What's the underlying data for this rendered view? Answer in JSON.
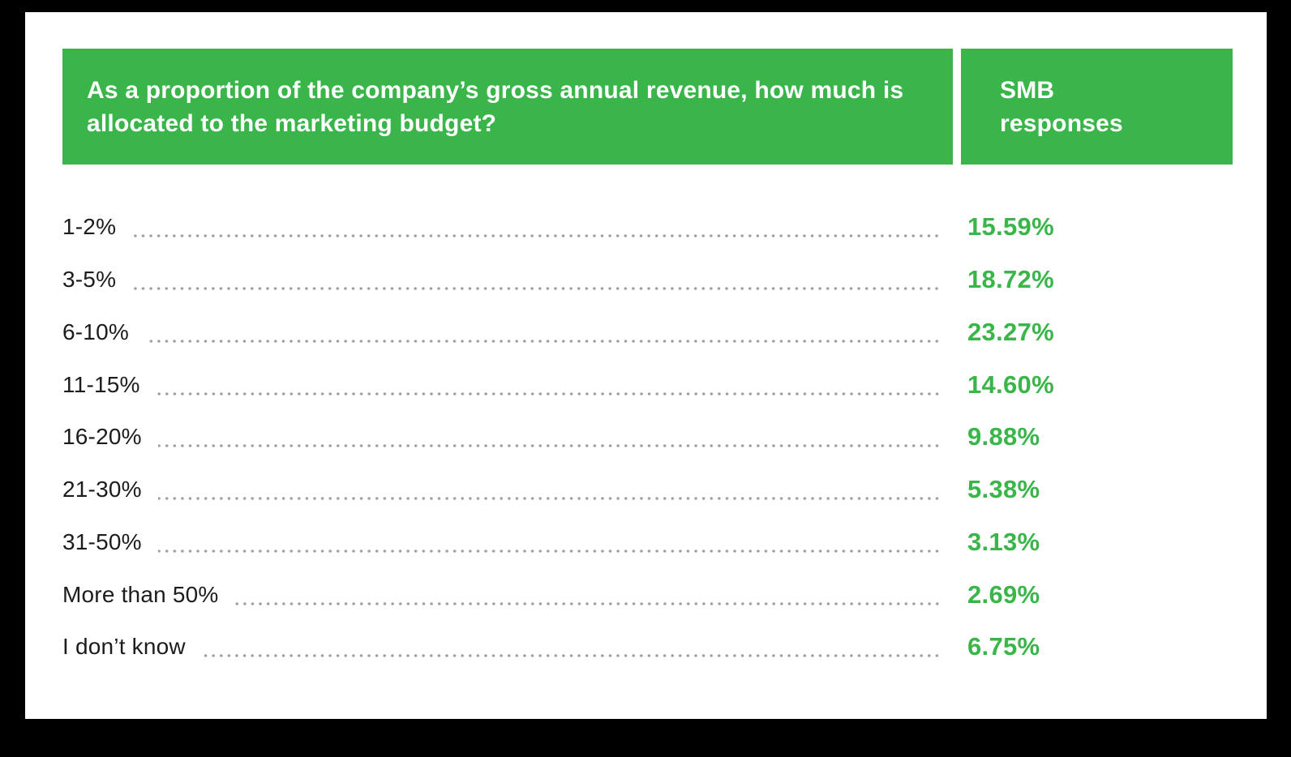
{
  "colors": {
    "frame_background": "#000000",
    "card_background": "#ffffff",
    "accent_green": "#3ab54a",
    "header_text": "#ffffff",
    "label_text": "#1c1c1c",
    "dot_leader": "#9d9d9d"
  },
  "header": {
    "question": "As a proportion of the company’s gross annual revenue, how much is allocated to the marketing budget?",
    "responses_label": "SMB responses"
  },
  "chart_data": {
    "type": "table",
    "title": "As a proportion of the company’s gross annual revenue, how much is allocated to the marketing budget?",
    "value_column": "SMB responses",
    "categories": [
      "1-2%",
      "3-5%",
      "6-10%",
      "11-15%",
      "16-20%",
      "21-30%",
      "31-50%",
      "More than 50%",
      "I don’t know"
    ],
    "values": [
      15.59,
      18.72,
      23.27,
      14.6,
      9.88,
      5.38,
      3.13,
      2.69,
      6.75
    ],
    "value_labels": [
      "15.59%",
      "18.72%",
      "23.27%",
      "14.60%",
      "9.88%",
      "5.38%",
      "3.13%",
      "2.69%",
      "6.75%"
    ],
    "legend_position": "none",
    "grid": "dot-leaders"
  }
}
